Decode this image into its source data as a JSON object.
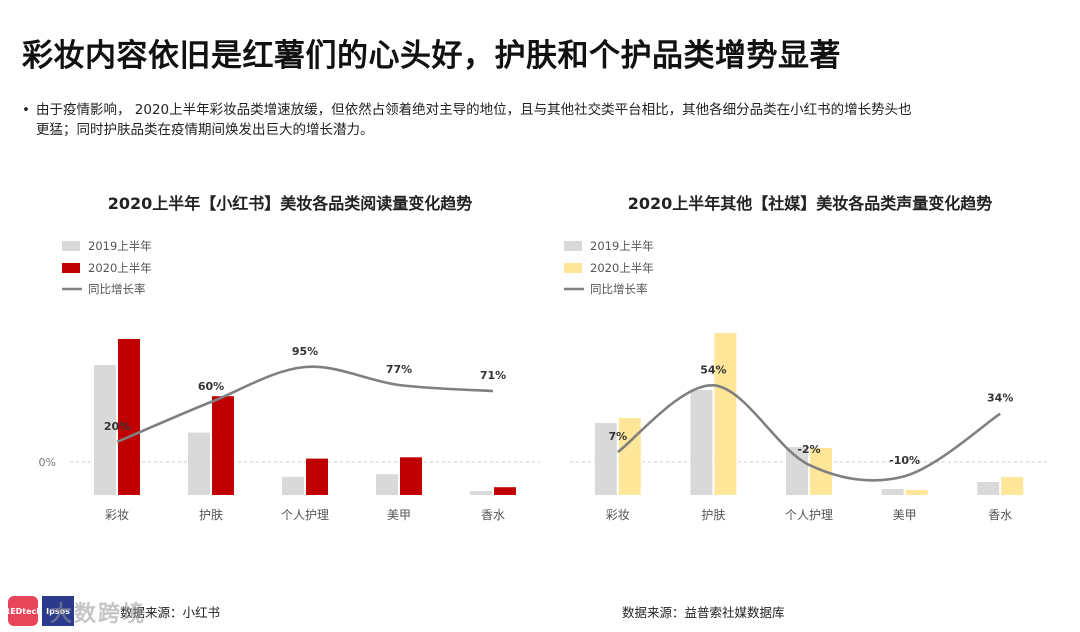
{
  "page": {
    "title": "彩妆内容依旧是红薯们的心头好，护肤和个护品类增势显著",
    "bullet": "由于疫情影响， 2020上半年彩妆品类增速放缓，但依然占领着绝对主导的地位，且与其他社交类平台相比，其他各细分品类在小红书的增长势头也更猛；同时护肤品类在疫情期间焕发出巨大的增长潜力。",
    "bullet_mark": "•",
    "left_source": "数据来源：小红书",
    "right_source": "数据来源：益普索社媒数据库",
    "logo_left": "REDtech",
    "logo_right": "Ipsos",
    "watermark": "大数跨境"
  },
  "chart_data": [
    {
      "type": "bar",
      "title": "2020上半年【小红书】美妆各品类阅读量变化趋势",
      "categories": [
        "彩妆",
        "护肤",
        "个人护理",
        "美甲",
        "香水"
      ],
      "series": [
        {
          "name": "2019上半年",
          "values": [
            100,
            48,
            14,
            16,
            3
          ],
          "color": "#d9d9d9"
        },
        {
          "name": "2020上半年",
          "values": [
            120,
            76,
            28,
            29,
            6
          ],
          "color": "#c00000"
        }
      ],
      "line": {
        "name": "同比增长率",
        "values": [
          20,
          60,
          95,
          77,
          71
        ],
        "labels": [
          "20%",
          "60%",
          "95%",
          "77%",
          "71%"
        ],
        "color": "#808080"
      },
      "zero_label": "0%"
    },
    {
      "type": "bar",
      "title": "2020上半年其他【社媒】美妆各品类声量变化趋势",
      "categories": [
        "彩妆",
        "护肤",
        "个人护理",
        "美甲",
        "香水"
      ],
      "series": [
        {
          "name": "2019上半年",
          "values": [
            72,
            105,
            48,
            6,
            13
          ],
          "color": "#d9d9d9"
        },
        {
          "name": "2020上半年",
          "values": [
            77,
            162,
            47,
            5,
            18
          ],
          "color": "#ffe699"
        }
      ],
      "line": {
        "name": "同比增长率",
        "values": [
          7,
          54,
          -2,
          -10,
          34
        ],
        "labels": [
          "7%",
          "54%",
          "-2%",
          "-10%",
          "34%"
        ],
        "color": "#808080"
      }
    }
  ]
}
